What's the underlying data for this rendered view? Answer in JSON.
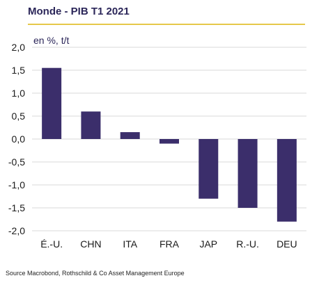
{
  "title": "Monde - PIB T1 2021",
  "unit_label": "en %, t/t",
  "source": "Source Macrobond, Rothschild & Co Asset Management Europe",
  "colors": {
    "bar": "#3b2e6b",
    "grid": "#d9d9d9",
    "title_rule": "#e6c84a",
    "title": "#2b2659"
  },
  "chart_data": {
    "type": "bar",
    "title": "Monde - PIB T1 2021",
    "ylabel": "en %, t/t",
    "xlabel": "",
    "categories": [
      "É.-U.",
      "CHN",
      "ITA",
      "FRA",
      "JAP",
      "R.-U.",
      "DEU"
    ],
    "values": [
      1.55,
      0.6,
      0.15,
      -0.1,
      -1.3,
      -1.5,
      -1.8
    ],
    "ylim": [
      -2.0,
      2.0
    ],
    "yticks": [
      "2,0",
      "1,5",
      "1,0",
      "0,5",
      "0,0",
      "-0,5",
      "-1,0",
      "-1,5",
      "-2,0"
    ],
    "grid": true,
    "legend": "none"
  }
}
